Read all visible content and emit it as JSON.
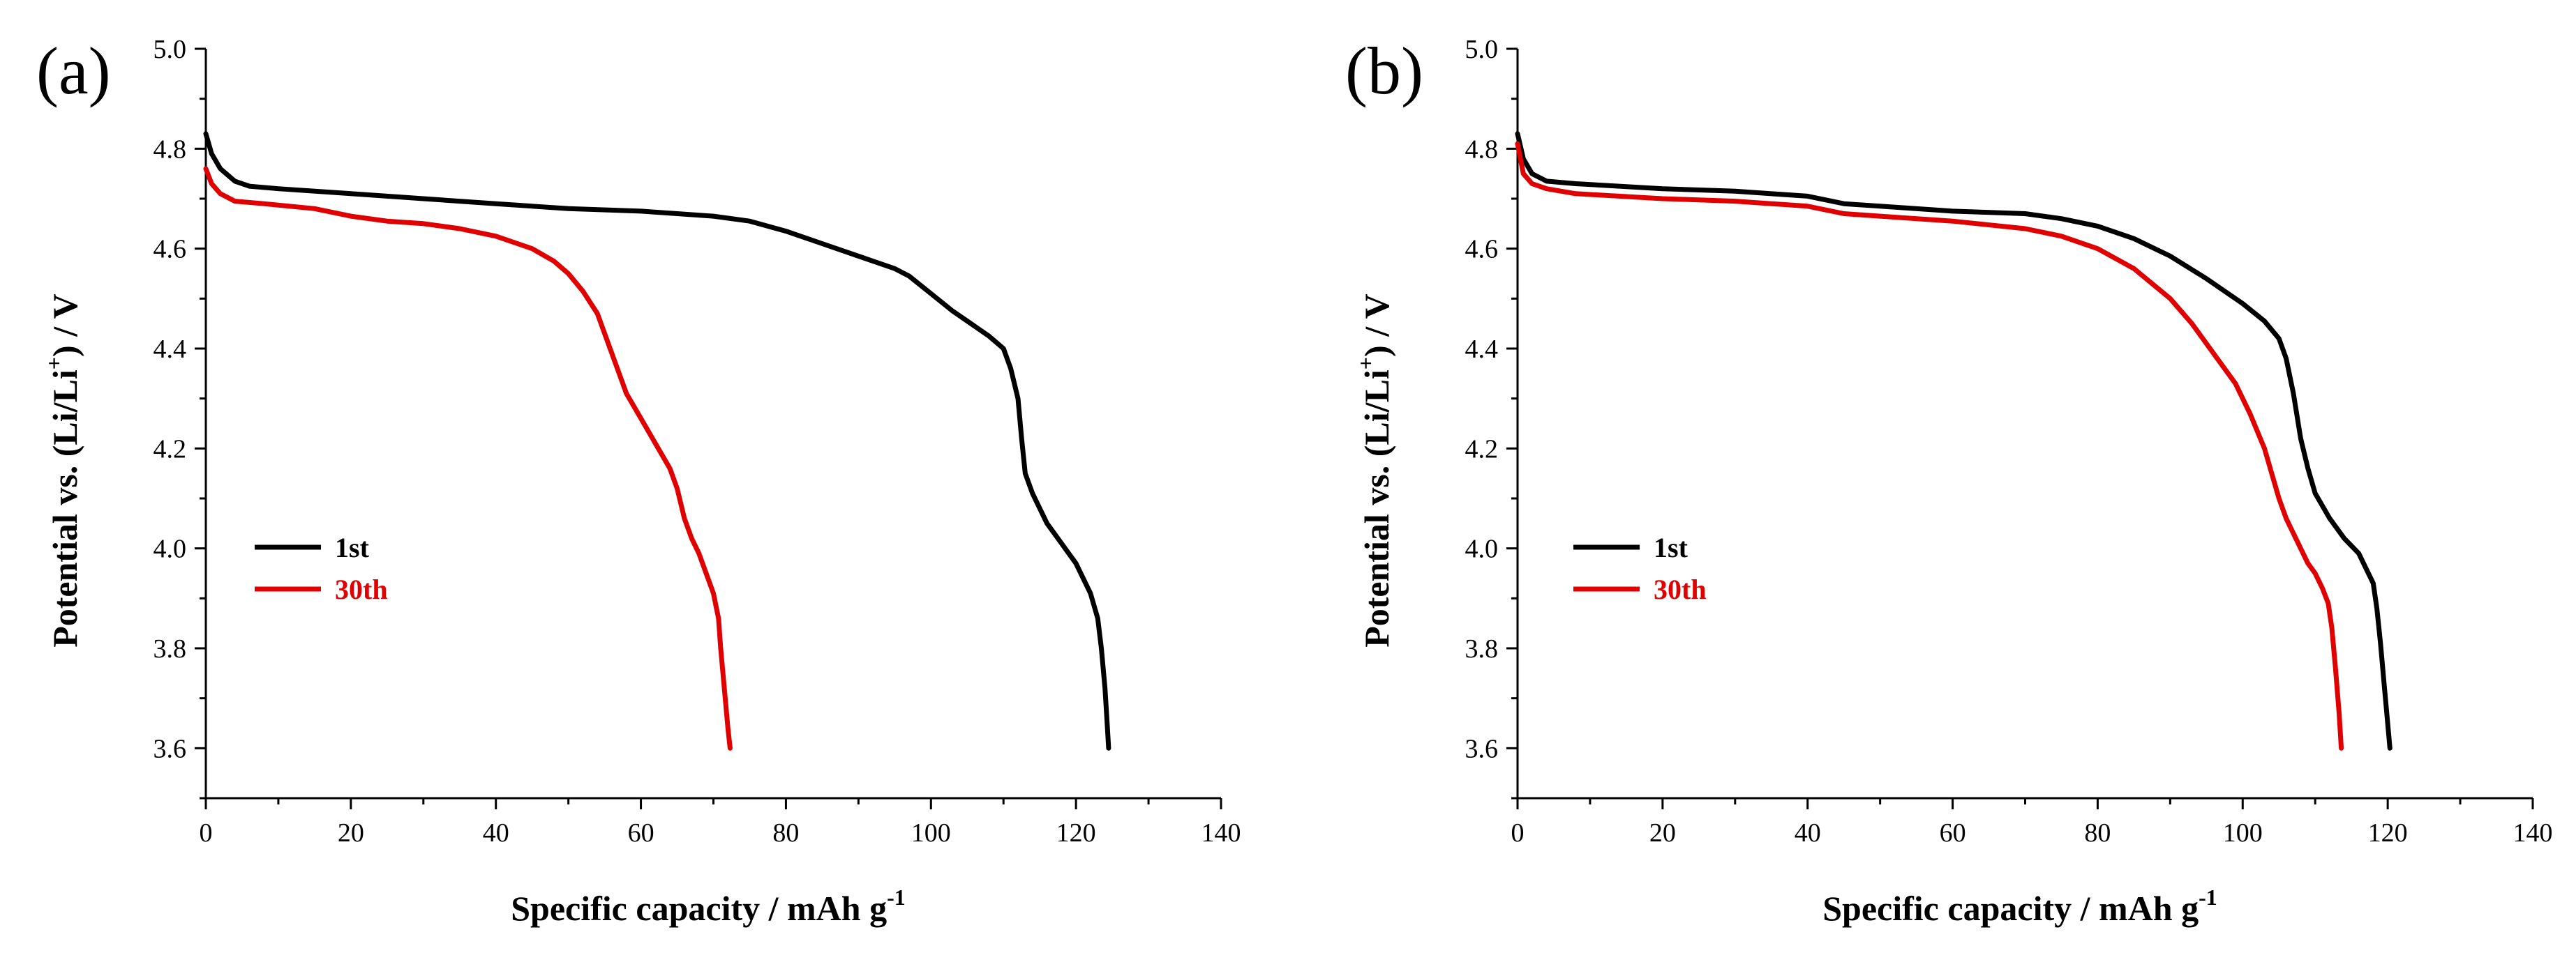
{
  "chart_data": [
    {
      "type": "line",
      "panel_label": "(a)",
      "xlabel": "Specific capacity / mAh g",
      "xlabel_superscript": "-1",
      "ylabel": "Potential vs. (Li/Li",
      "ylabel_superscript": "+",
      "ylabel_suffix": ") / V",
      "xlim": [
        0,
        140
      ],
      "ylim": [
        3.5,
        5.0
      ],
      "xticks": [
        0,
        20,
        40,
        60,
        80,
        100,
        120,
        140
      ],
      "xtick_labels": [
        "0",
        "20",
        "40",
        "60",
        "80",
        "100",
        "120",
        "140"
      ],
      "yticks": [
        3.6,
        3.8,
        4.0,
        4.2,
        4.4,
        4.6,
        4.8,
        5.0
      ],
      "ytick_labels": [
        "3.6",
        "3.8",
        "4.0",
        "4.2",
        "4.4",
        "4.6",
        "4.8",
        "5.0"
      ],
      "legend_position": "left-middle",
      "series": [
        {
          "name": "1st",
          "color": "#000000",
          "x": [
            0,
            0.8,
            2,
            4,
            6,
            10,
            20,
            30,
            40,
            50,
            60,
            70,
            75,
            80,
            85,
            90,
            95,
            97,
            100,
            103,
            106,
            108,
            110,
            111,
            112,
            112.5,
            113,
            114,
            115,
            116,
            118,
            120,
            121,
            122,
            123,
            123.5,
            124,
            124.3,
            124.5
          ],
          "y": [
            4.83,
            4.79,
            4.76,
            4.735,
            4.725,
            4.72,
            4.71,
            4.7,
            4.69,
            4.68,
            4.675,
            4.665,
            4.655,
            4.635,
            4.61,
            4.585,
            4.56,
            4.545,
            4.51,
            4.475,
            4.445,
            4.425,
            4.4,
            4.36,
            4.3,
            4.22,
            4.15,
            4.11,
            4.08,
            4.05,
            4.01,
            3.97,
            3.94,
            3.91,
            3.86,
            3.8,
            3.72,
            3.65,
            3.6
          ]
        },
        {
          "name": "30th",
          "color": "#e00000",
          "x": [
            0,
            0.8,
            2,
            4,
            8,
            15,
            20,
            25,
            30,
            35,
            40,
            45,
            48,
            50,
            52,
            54,
            55,
            56,
            57,
            58,
            60,
            62,
            64,
            65,
            66,
            67,
            68,
            69,
            70,
            70.7,
            71,
            71.5,
            72,
            72.3
          ],
          "y": [
            4.76,
            4.73,
            4.71,
            4.695,
            4.69,
            4.68,
            4.665,
            4.655,
            4.65,
            4.64,
            4.625,
            4.6,
            4.575,
            4.55,
            4.515,
            4.47,
            4.43,
            4.39,
            4.35,
            4.31,
            4.26,
            4.21,
            4.16,
            4.12,
            4.06,
            4.02,
            3.99,
            3.95,
            3.91,
            3.86,
            3.8,
            3.72,
            3.64,
            3.6
          ]
        }
      ]
    },
    {
      "type": "line",
      "panel_label": "(b)",
      "xlabel": "Specific capacity / mAh g",
      "xlabel_superscript": "-1",
      "ylabel": "Potential vs. (Li/Li",
      "ylabel_superscript": "+",
      "ylabel_suffix": ") / V",
      "xlim": [
        0,
        140
      ],
      "ylim": [
        3.5,
        5.0
      ],
      "xticks": [
        0,
        20,
        40,
        60,
        80,
        100,
        120,
        140
      ],
      "xtick_labels": [
        "0",
        "20",
        "40",
        "60",
        "80",
        "100",
        "120",
        "140"
      ],
      "yticks": [
        3.6,
        3.8,
        4.0,
        4.2,
        4.4,
        4.6,
        4.8,
        5.0
      ],
      "ytick_labels": [
        "3.6",
        "3.8",
        "4.0",
        "4.2",
        "4.4",
        "4.6",
        "4.8",
        "5.0"
      ],
      "legend_position": "left-middle",
      "series": [
        {
          "name": "1st",
          "color": "#000000",
          "x": [
            0,
            0.8,
            2,
            4,
            8,
            20,
            30,
            40,
            45,
            50,
            60,
            70,
            75,
            80,
            85,
            90,
            95,
            100,
            103,
            105,
            106,
            107,
            108,
            109,
            110,
            112,
            114,
            116,
            117,
            118,
            118.5,
            119,
            119.5,
            120,
            120.3
          ],
          "y": [
            4.83,
            4.78,
            4.75,
            4.735,
            4.73,
            4.72,
            4.715,
            4.705,
            4.69,
            4.685,
            4.675,
            4.67,
            4.66,
            4.645,
            4.62,
            4.585,
            4.54,
            4.49,
            4.455,
            4.42,
            4.38,
            4.31,
            4.22,
            4.16,
            4.11,
            4.06,
            4.02,
            3.99,
            3.96,
            3.93,
            3.88,
            3.81,
            3.73,
            3.65,
            3.6
          ]
        },
        {
          "name": "30th",
          "color": "#e00000",
          "x": [
            0,
            0.8,
            2,
            4,
            8,
            20,
            30,
            40,
            45,
            50,
            60,
            70,
            75,
            80,
            85,
            90,
            93,
            96,
            99,
            101,
            103,
            104,
            105,
            106,
            107,
            108,
            109,
            110,
            111,
            111.8,
            112.3,
            112.8,
            113.3,
            113.6
          ],
          "y": [
            4.81,
            4.75,
            4.73,
            4.72,
            4.71,
            4.7,
            4.695,
            4.685,
            4.67,
            4.665,
            4.655,
            4.64,
            4.625,
            4.6,
            4.56,
            4.5,
            4.45,
            4.39,
            4.33,
            4.27,
            4.2,
            4.15,
            4.1,
            4.06,
            4.03,
            4.0,
            3.97,
            3.95,
            3.92,
            3.89,
            3.84,
            3.76,
            3.67,
            3.6
          ]
        }
      ]
    }
  ]
}
